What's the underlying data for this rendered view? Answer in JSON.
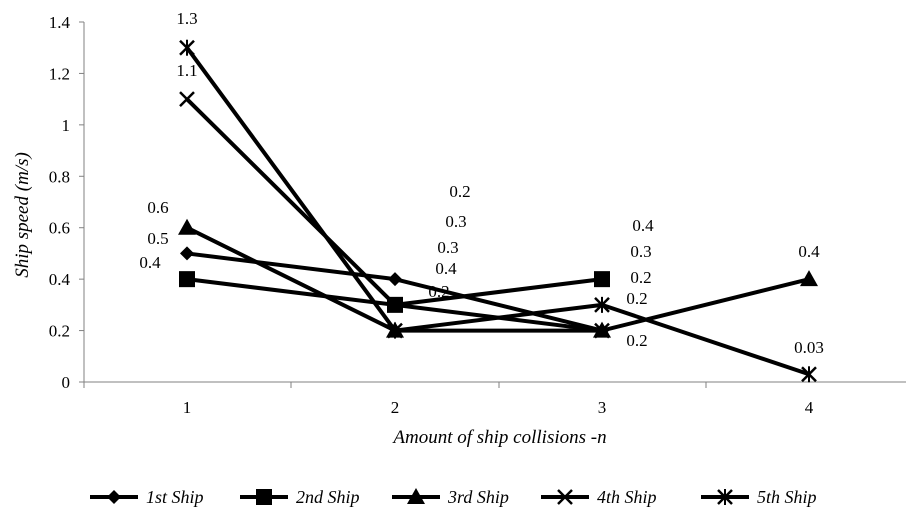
{
  "chart_data": {
    "type": "line",
    "xlabel": "Amount of ship collisions -n",
    "ylabel": "Ship speed (m/s)",
    "categories": [
      "1",
      "2",
      "3",
      "4"
    ],
    "ylim": [
      0,
      1.4
    ],
    "yticks": [
      "0",
      "0.2",
      "0.4",
      "0.6",
      "0.8",
      "1",
      "1.2",
      "1.4"
    ],
    "grid": false,
    "legend_position": "bottom",
    "series": [
      {
        "name": "1st Ship",
        "marker": "diamond",
        "values": [
          0.5,
          0.4,
          0.2,
          null
        ],
        "labels": [
          "0.5",
          "0.4",
          "0.2",
          ""
        ]
      },
      {
        "name": "2nd Ship",
        "marker": "square",
        "values": [
          0.4,
          0.3,
          0.4,
          null
        ],
        "labels": [
          "0.4",
          "0.3",
          "0.4",
          ""
        ]
      },
      {
        "name": "3rd Ship",
        "marker": "triangle",
        "values": [
          0.6,
          0.2,
          0.2,
          0.4
        ],
        "labels": [
          "0.6",
          "0.2",
          "0.2",
          "0.4"
        ]
      },
      {
        "name": "4th Ship",
        "marker": "x",
        "values": [
          1.1,
          0.3,
          0.2,
          null
        ],
        "labels": [
          "1.1",
          "0.3",
          "0.2",
          ""
        ]
      },
      {
        "name": "5th Ship",
        "marker": "star",
        "values": [
          1.3,
          0.2,
          0.3,
          0.03
        ],
        "labels": [
          "1.3",
          "0.2",
          "0.3",
          "0.03"
        ]
      }
    ],
    "colors": {
      "line": "#000000",
      "axis": "#808080"
    }
  }
}
